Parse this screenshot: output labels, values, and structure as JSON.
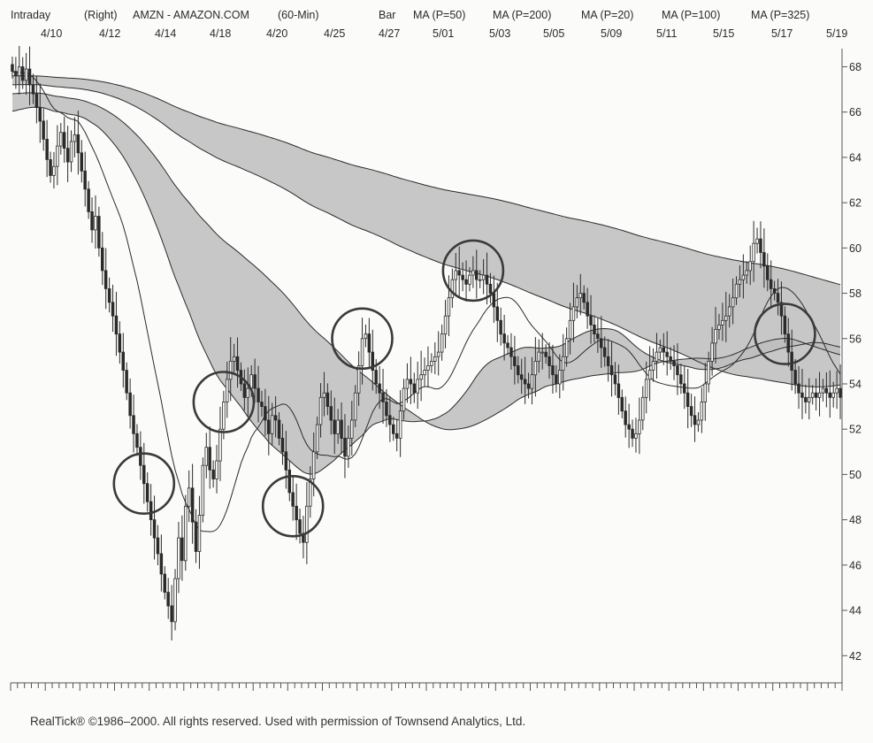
{
  "header": {
    "items": [
      "Intraday",
      "(Right)",
      "AMZN - AMAZON.COM",
      "(60-Min)",
      "Bar",
      "MA (P=50)",
      "MA (P=200)",
      "MA (P=20)",
      "MA (P=100)",
      "MA (P=325)"
    ]
  },
  "footer": {
    "credit": "RealTick® ©1986–2000. All rights reserved. Used with permission of Townsend Analytics, Ltd."
  },
  "colors": {
    "band": "#bdbdbd",
    "bar": "#2b2b2b",
    "line": "#2b2b2b",
    "circle": "#3a3a3a",
    "background": "#fbfbfa"
  },
  "chart_data": {
    "type": "ohlc",
    "symbol": "AMZN",
    "interval": "60-Min",
    "x": {
      "date_labels": [
        "4/10",
        "4/12",
        "4/14",
        "4/18",
        "4/20",
        "4/25",
        "4/27",
        "5/01",
        "5/03",
        "5/05",
        "5/09",
        "5/11",
        "5/15",
        "5/17",
        "5/19"
      ],
      "num_bars": 240
    },
    "y": {
      "ylim": [
        40.8,
        68.8
      ],
      "ticks": [
        42,
        44,
        46,
        48,
        50,
        52,
        54,
        56,
        58,
        60,
        62,
        64,
        66,
        68
      ],
      "position": "right"
    },
    "close": [
      67.8,
      67.6,
      68.0,
      67.4,
      67.9,
      67.2,
      66.8,
      66.2,
      65.6,
      64.8,
      63.9,
      63.2,
      63.6,
      64.5,
      65.1,
      64.4,
      63.8,
      64.7,
      65.0,
      64.2,
      63.4,
      62.6,
      61.6,
      60.8,
      61.4,
      60.0,
      59.0,
      58.2,
      57.6,
      57.0,
      56.2,
      55.4,
      54.6,
      53.6,
      52.6,
      51.8,
      51.2,
      50.4,
      49.6,
      48.8,
      48.0,
      47.2,
      46.5,
      45.6,
      44.8,
      44.2,
      43.5,
      45.4,
      47.2,
      46.2,
      48.6,
      49.4,
      47.9,
      46.6,
      48.2,
      50.4,
      51.2,
      50.2,
      49.8,
      50.6,
      52.0,
      53.2,
      54.2,
      55.0,
      55.2,
      54.6,
      54.0,
      53.4,
      53.8,
      54.4,
      53.8,
      53.2,
      53.0,
      52.4,
      51.8,
      52.6,
      52.4,
      51.6,
      51.0,
      50.2,
      49.2,
      48.6,
      48.0,
      47.4,
      47.0,
      48.6,
      49.8,
      51.0,
      52.2,
      53.4,
      53.6,
      53.0,
      52.4,
      51.8,
      52.4,
      51.6,
      50.8,
      51.6,
      52.4,
      53.6,
      54.8,
      56.0,
      56.2,
      55.4,
      54.6,
      54.0,
      53.6,
      53.2,
      52.6,
      52.2,
      51.8,
      51.6,
      52.8,
      53.8,
      54.2,
      54.0,
      53.6,
      54.2,
      54.4,
      54.6,
      54.8,
      55.0,
      55.2,
      55.4,
      56.2,
      57.0,
      57.8,
      58.6,
      59.0,
      58.8,
      58.6,
      58.4,
      58.8,
      59.0,
      58.6,
      58.6,
      58.8,
      58.4,
      58.0,
      57.4,
      56.8,
      56.2,
      55.8,
      55.6,
      55.2,
      54.8,
      54.4,
      54.2,
      54.0,
      53.8,
      54.4,
      55.0,
      55.4,
      55.4,
      55.2,
      54.8,
      54.4,
      54.0,
      54.6,
      55.2,
      56.0,
      56.8,
      57.4,
      57.8,
      58.0,
      57.6,
      57.0,
      56.6,
      56.2,
      56.0,
      55.6,
      55.2,
      54.8,
      54.4,
      54.0,
      53.4,
      52.8,
      52.2,
      52.0,
      51.6,
      51.8,
      52.4,
      53.4,
      54.2,
      54.6,
      55.0,
      55.4,
      55.6,
      55.4,
      55.2,
      55.0,
      54.8,
      54.4,
      54.0,
      53.6,
      53.0,
      52.6,
      52.2,
      52.4,
      53.2,
      54.0,
      55.0,
      55.8,
      56.4,
      56.6,
      56.8,
      57.0,
      57.4,
      57.8,
      58.4,
      58.6,
      58.8,
      59.0,
      59.4,
      60.2,
      60.4,
      59.8,
      59.2,
      58.6,
      58.2,
      58.0,
      57.6,
      57.0,
      56.2,
      55.4,
      54.6,
      54.0,
      53.6,
      53.4,
      53.2,
      53.4,
      53.6,
      53.4,
      53.6,
      53.8,
      53.6,
      53.4,
      53.6,
      53.8,
      53.4
    ],
    "moving_averages": [
      "MA (P=20)",
      "MA (P=50)",
      "MA (P=100)",
      "MA (P=200)",
      "MA (P=325)"
    ],
    "ma_bands": [
      [
        "MA (P=200)",
        "MA (P=325)"
      ],
      [
        "MA (P=50)",
        "MA (P=100)"
      ]
    ],
    "highlight_circle_indices": [
      38,
      61,
      81,
      101,
      133,
      223
    ]
  }
}
